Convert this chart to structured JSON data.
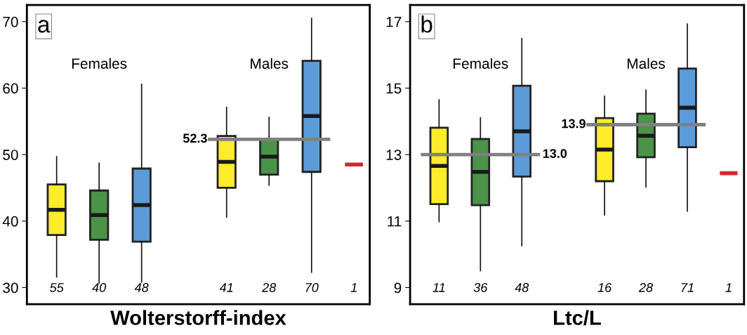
{
  "chart_data": [
    {
      "type": "box",
      "xlabel": "Wolterstorff-index",
      "categories": [
        "55",
        "40",
        "48",
        "41",
        "28",
        "70",
        "1"
      ],
      "colors": [
        "#fcec2b",
        "#4b9347",
        "#5b9bd8",
        "#fcec2b",
        "#4b9347",
        "#5b9bd8",
        "#d62631"
      ],
      "boxes": [
        {
          "low": 31.6,
          "q1": 37.9,
          "median": 41.7,
          "q3": 45.5,
          "high": 49.7
        },
        {
          "low": 30.7,
          "q1": 37.2,
          "median": 40.9,
          "q3": 44.6,
          "high": 48.7
        },
        {
          "low": 30.8,
          "q1": 36.9,
          "median": 42.4,
          "q3": 47.9,
          "high": 60.6
        },
        {
          "low": 40.6,
          "q1": 45.0,
          "median": 48.9,
          "q3": 52.8,
          "high": 57.1
        },
        {
          "low": 45.4,
          "q1": 47.0,
          "median": 49.7,
          "q3": 52.3,
          "high": 55.6
        },
        {
          "low": 32.3,
          "q1": 47.4,
          "median": 55.8,
          "q3": 64.1,
          "high": 70.5
        },
        {
          "low": 48.5,
          "q1": 48.5,
          "median": 48.5,
          "q3": 48.5,
          "high": 48.5
        }
      ],
      "ylim": [
        27.5,
        72.5
      ],
      "yticks": [
        30,
        40,
        50,
        60,
        70
      ],
      "grid": false,
      "ref_lines": [
        {
          "axis": "y",
          "value": 52.3,
          "label": "52.3",
          "color": "#808080"
        }
      ],
      "annotations": [
        "a",
        "Females",
        "Males"
      ]
    },
    {
      "type": "box",
      "xlabel": "Ltc/L",
      "categories": [
        "11",
        "36",
        "48",
        "16",
        "28",
        "71",
        "1"
      ],
      "colors": [
        "#fcec2b",
        "#4b9347",
        "#5b9bd8",
        "#fcec2b",
        "#4b9347",
        "#5b9bd8",
        "#d62631"
      ],
      "boxes": [
        {
          "low": 10.98,
          "q1": 11.51,
          "median": 12.66,
          "q3": 13.81,
          "high": 14.65
        },
        {
          "low": 9.51,
          "q1": 11.48,
          "median": 12.48,
          "q3": 13.47,
          "high": 14.11
        },
        {
          "low": 10.26,
          "q1": 12.34,
          "median": 13.7,
          "q3": 15.07,
          "high": 16.49
        },
        {
          "low": 11.18,
          "q1": 12.2,
          "median": 13.15,
          "q3": 14.1,
          "high": 14.76
        },
        {
          "low": 12.02,
          "q1": 12.92,
          "median": 13.57,
          "q3": 14.23,
          "high": 14.94
        },
        {
          "low": 11.3,
          "q1": 13.22,
          "median": 14.41,
          "q3": 15.59,
          "high": 16.93
        },
        {
          "low": 12.44,
          "q1": 12.44,
          "median": 12.44,
          "q3": 12.44,
          "high": 12.44
        }
      ],
      "ylim": [
        8.5,
        17.5
      ],
      "yticks": [
        9,
        11,
        13,
        15,
        17
      ],
      "grid": false,
      "ref_lines": [
        {
          "axis": "y",
          "value": 13.0,
          "label": "13.0",
          "color": "#808080"
        },
        {
          "axis": "y",
          "value": 13.9,
          "label": "13.9",
          "color": "#808080"
        }
      ],
      "annotations": [
        "b",
        "Females",
        "Males"
      ]
    }
  ]
}
